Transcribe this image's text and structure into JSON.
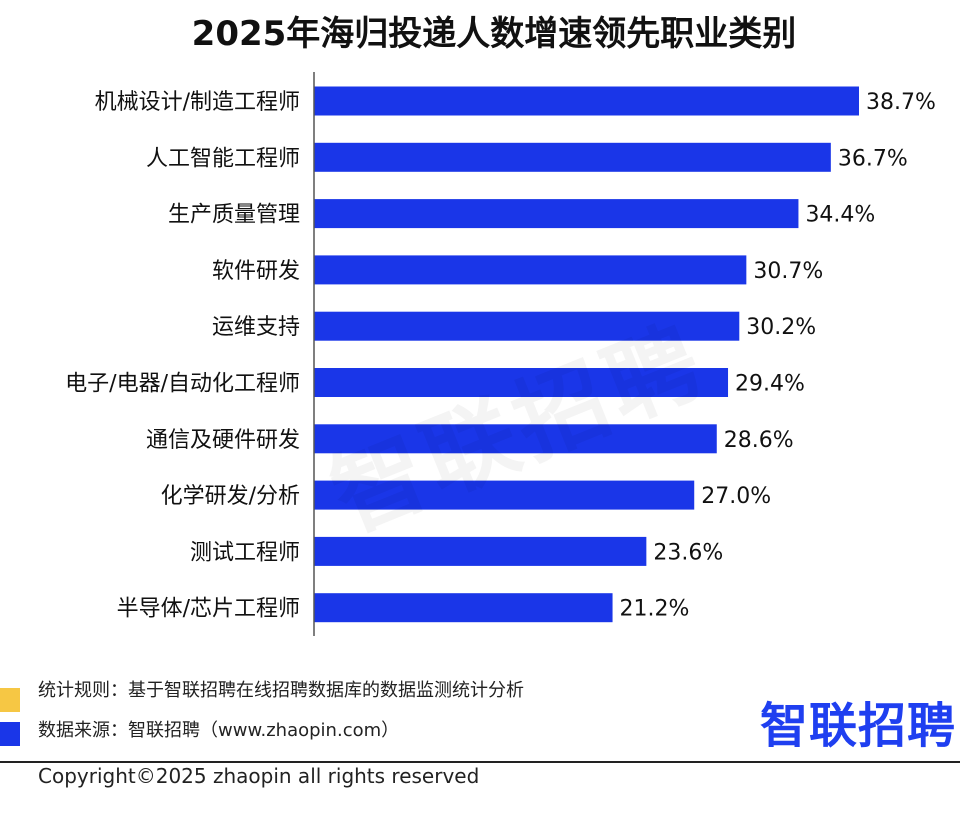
{
  "chart_data": {
    "type": "bar",
    "orientation": "horizontal",
    "title": "2025年海归投递人数增速领先职业类别",
    "categories": [
      "机械设计/制造工程师",
      "人工智能工程师",
      "生产质量管理",
      "软件研发",
      "运维支持",
      "电子/电器/自动化工程师",
      "通信及硬件研发",
      "化学研发/分析",
      "测试工程师",
      "半导体/芯片工程师"
    ],
    "values": [
      38.7,
      36.7,
      34.4,
      30.7,
      30.2,
      29.4,
      28.6,
      27.0,
      23.6,
      21.2
    ],
    "value_labels": [
      "38.7%",
      "36.7%",
      "34.4%",
      "30.7%",
      "30.2%",
      "29.4%",
      "28.6%",
      "27.0%",
      "23.6%",
      "21.2%"
    ],
    "xlim": [
      0,
      40
    ],
    "grid": false,
    "xlabel": "",
    "ylabel": "",
    "colors": {
      "bar": "#1a36e8",
      "axis": "#555555",
      "text": "#111111"
    }
  },
  "watermark": "智联招聘",
  "footer": {
    "rule_note": "统计规则：基于智联招聘在线招聘数据库的数据监测统计分析",
    "source_note": "数据来源：智联招聘（www.zhaopin.com）",
    "brand_logo": "智联招聘",
    "copyright": "Copyright©2025 zhaopin all rights reserved",
    "colors": {
      "yellow_marker": "#f6c744",
      "blue_marker": "#1a36e8",
      "brand": "#1f3ff0"
    }
  }
}
